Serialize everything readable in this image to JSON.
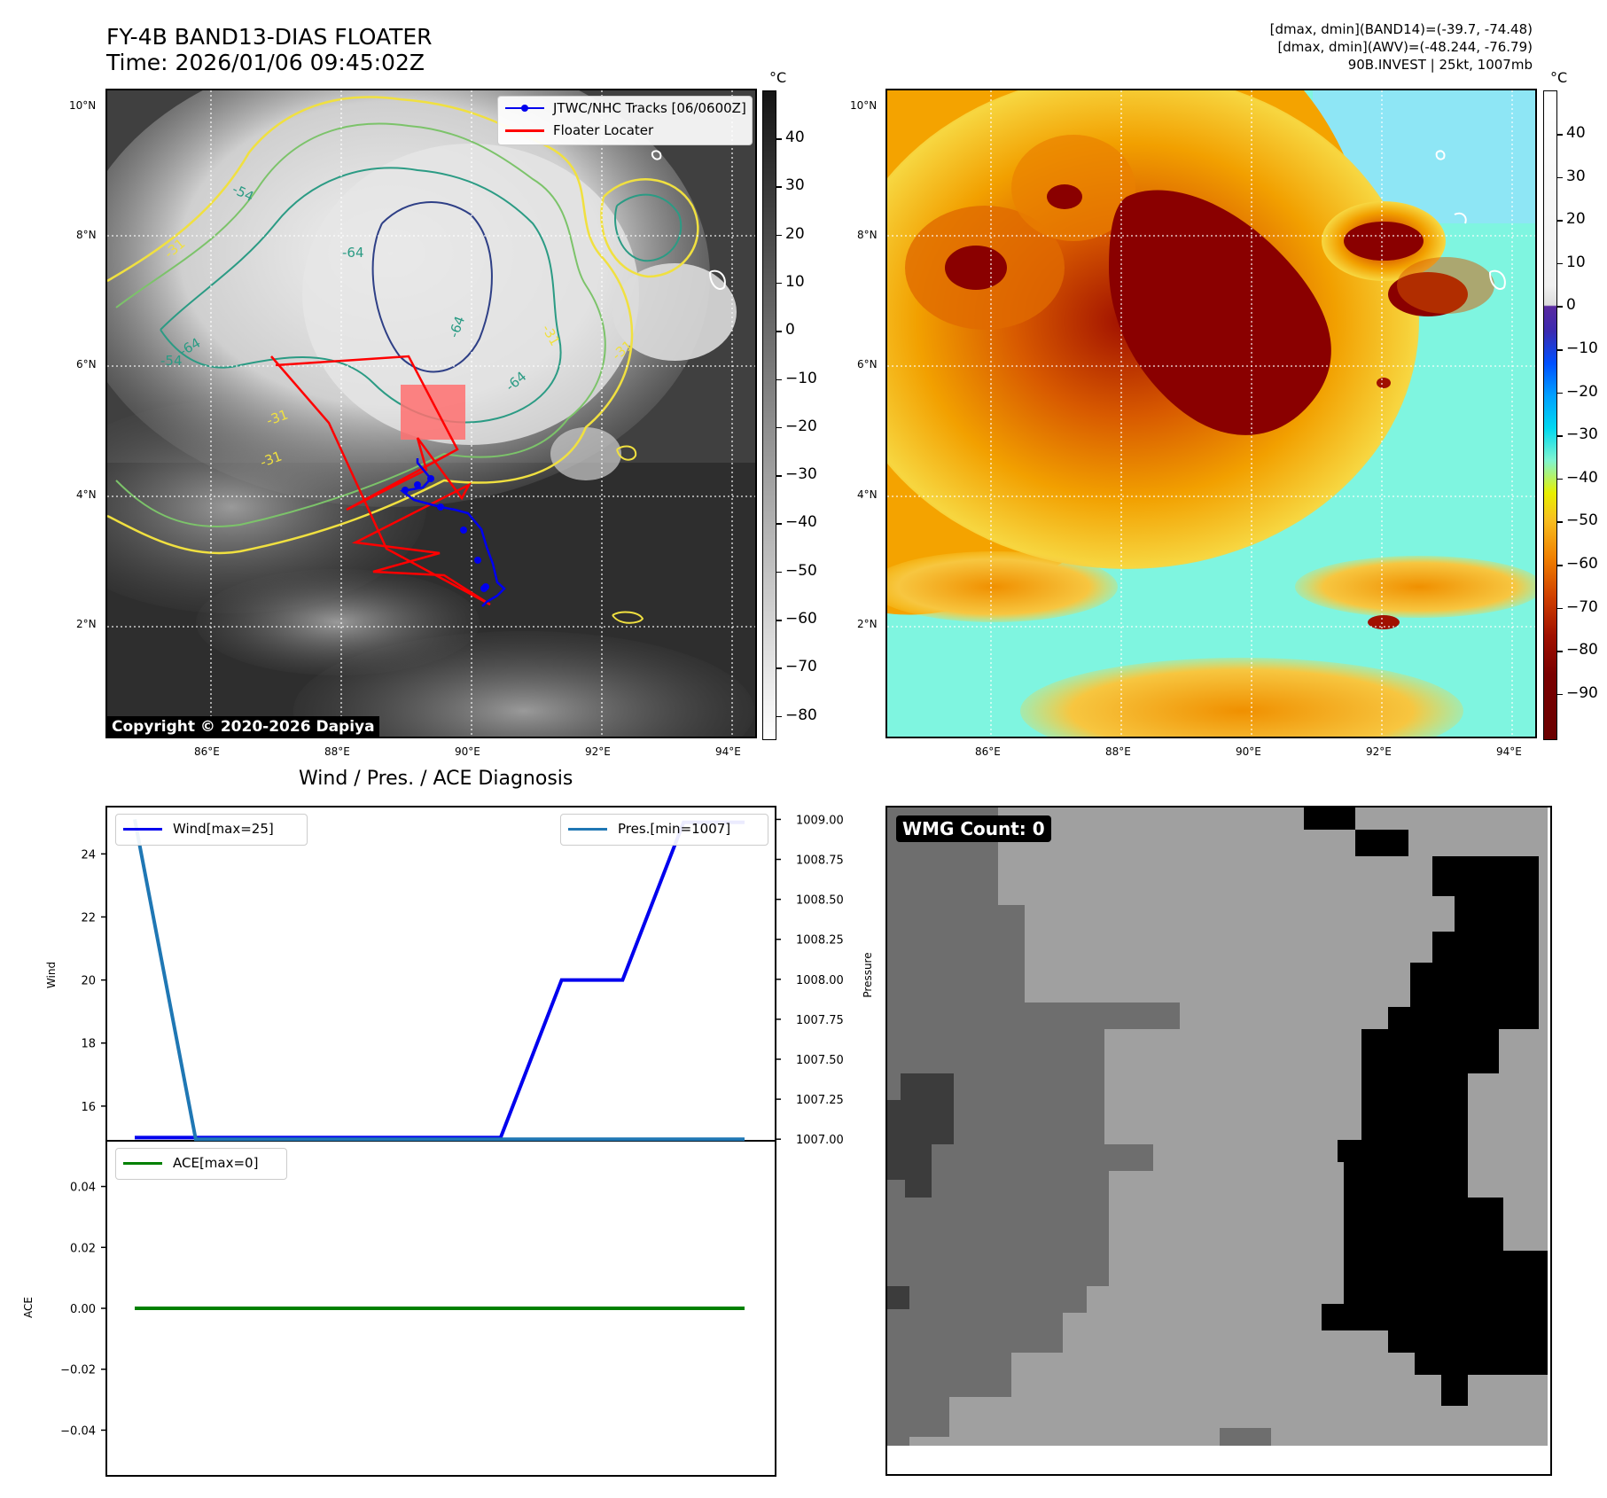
{
  "header": {
    "title_line1": "FY-4B BAND13-DIAS FLOATER",
    "title_line2": "Time: 2026/01/06 09:45:02Z",
    "info_line1": "[dmax, dmin](BAND14)=(-39.7, -74.48)",
    "info_line2": "[dmax, dmin](AWV)=(-48.244, -76.79)",
    "info_line3": "90B.INVEST | 25kt, 1007mb"
  },
  "colors": {
    "track": "#0000ee",
    "locater": "#ff0000",
    "wind": "#0000ee",
    "pressure": "#1f77b4",
    "ace": "#008000"
  },
  "map_left": {
    "lat_labels": [
      "10°N",
      "8°N",
      "6°N",
      "4°N",
      "2°N"
    ],
    "lon_labels": [
      "86°E",
      "88°E",
      "90°E",
      "92°E",
      "94°E"
    ],
    "contour_labels": [
      "-31",
      "-54",
      "-64"
    ],
    "legend": {
      "track_label": "JTWC/NHC Tracks [06/0600Z]",
      "locater_label": "Floater Locater"
    },
    "copyright": "Copyright © 2020-2026 Dapiya",
    "colorbar_unit": "°C",
    "colorbar_ticks": [
      "40",
      "30",
      "20",
      "10",
      "0",
      "−10",
      "−20",
      "−30",
      "−40",
      "−50",
      "−60",
      "−70",
      "−80"
    ]
  },
  "map_right": {
    "lat_labels": [
      "10°N",
      "8°N",
      "6°N",
      "4°N",
      "2°N"
    ],
    "lon_labels": [
      "86°E",
      "88°E",
      "90°E",
      "92°E",
      "94°E"
    ],
    "colorbar_unit": "°C",
    "colorbar_ticks": [
      "40",
      "30",
      "20",
      "10",
      "0",
      "−10",
      "−20",
      "−30",
      "−40",
      "−50",
      "−60",
      "−70",
      "−80",
      "−90"
    ]
  },
  "wmg": {
    "count_label": "WMG Count: 0"
  },
  "chart_data": [
    {
      "type": "line",
      "title": "Wind / Pres. / ACE Diagnosis",
      "xlabel": "",
      "ylabel": "Wind",
      "ylabel2": "Pressure",
      "ylim": [
        14.9,
        25.5
      ],
      "ylim2": [
        1006.99,
        1009.08
      ],
      "yticks": [
        "24",
        "22",
        "20",
        "18",
        "16"
      ],
      "yticks2": [
        "1009.00",
        "1008.75",
        "1008.50",
        "1008.25",
        "1008.00",
        "1007.75",
        "1007.50",
        "1007.25",
        "1007.00"
      ],
      "series": [
        {
          "name": "Wind[max=25]",
          "axis": "left",
          "x": [
            0,
            1,
            2,
            3,
            4,
            5,
            6,
            7,
            8,
            9,
            10
          ],
          "values": [
            15,
            15,
            15,
            15,
            15,
            15,
            15,
            20,
            20,
            25,
            25
          ]
        },
        {
          "name": "Pres.[min=1007]",
          "axis": "right",
          "x": [
            0,
            1,
            2,
            3,
            4,
            5,
            6,
            7,
            8,
            9,
            10
          ],
          "values": [
            1009,
            1007,
            1007,
            1007,
            1007,
            1007,
            1007,
            1007,
            1007,
            1007,
            1007
          ]
        }
      ]
    },
    {
      "type": "line",
      "title": "",
      "xlabel": "",
      "ylabel": "ACE",
      "ylim": [
        -0.055,
        0.055
      ],
      "yticks": [
        "0.04",
        "0.02",
        "0.00",
        "−0.02",
        "−0.04"
      ],
      "series": [
        {
          "name": "ACE[max=0]",
          "x": [
            0,
            10
          ],
          "values": [
            0,
            0
          ]
        }
      ]
    }
  ]
}
